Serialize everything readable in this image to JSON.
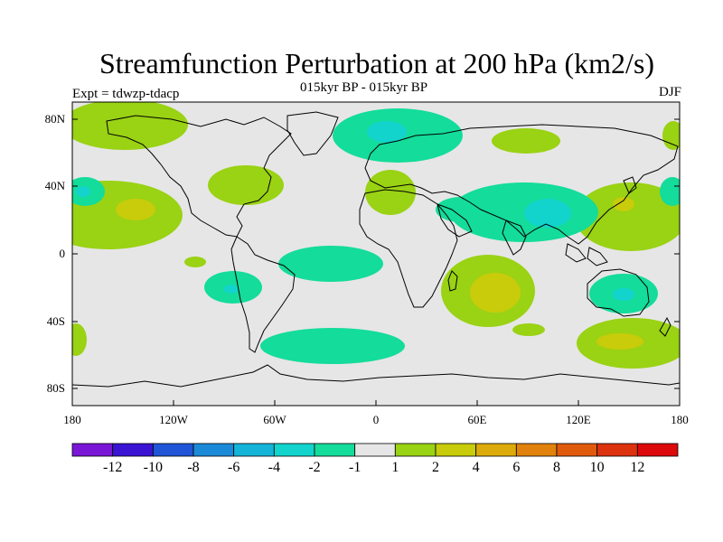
{
  "title": "Streamfunction Perturbation at 200 hPa (km2/s)",
  "subtitle": "015kyr BP - 015kyr BP",
  "experiment": "Expt = tdwzp-tdacp",
  "season": "DJF",
  "lat_labels": [
    "80N",
    "40N",
    "0",
    "40S",
    "80S"
  ],
  "lon_labels": [
    "180",
    "120W",
    "60W",
    "0",
    "60E",
    "120E",
    "180"
  ],
  "colorbar": {
    "colors": [
      "#7a16d6",
      "#3a14d2",
      "#1f55d6",
      "#1a8ad8",
      "#14b4d8",
      "#12d4cc",
      "#14dc9a",
      "#e6e6e6",
      "#9ad214",
      "#c8cc0a",
      "#dcaa0a",
      "#e0820c",
      "#e05a0c",
      "#dc320e",
      "#dc0a0a"
    ],
    "labels": [
      "-12",
      "-10",
      "-8",
      "-6",
      "-4",
      "-2",
      "-1",
      "1",
      "2",
      "4",
      "6",
      "8",
      "10",
      "12"
    ]
  },
  "fill_colors": {
    "background": "#e6e6e6",
    "pos1": "#9ad214",
    "pos2": "#c8cc0a",
    "neg1": "#14dc9a",
    "neg2": "#12d4cc"
  }
}
